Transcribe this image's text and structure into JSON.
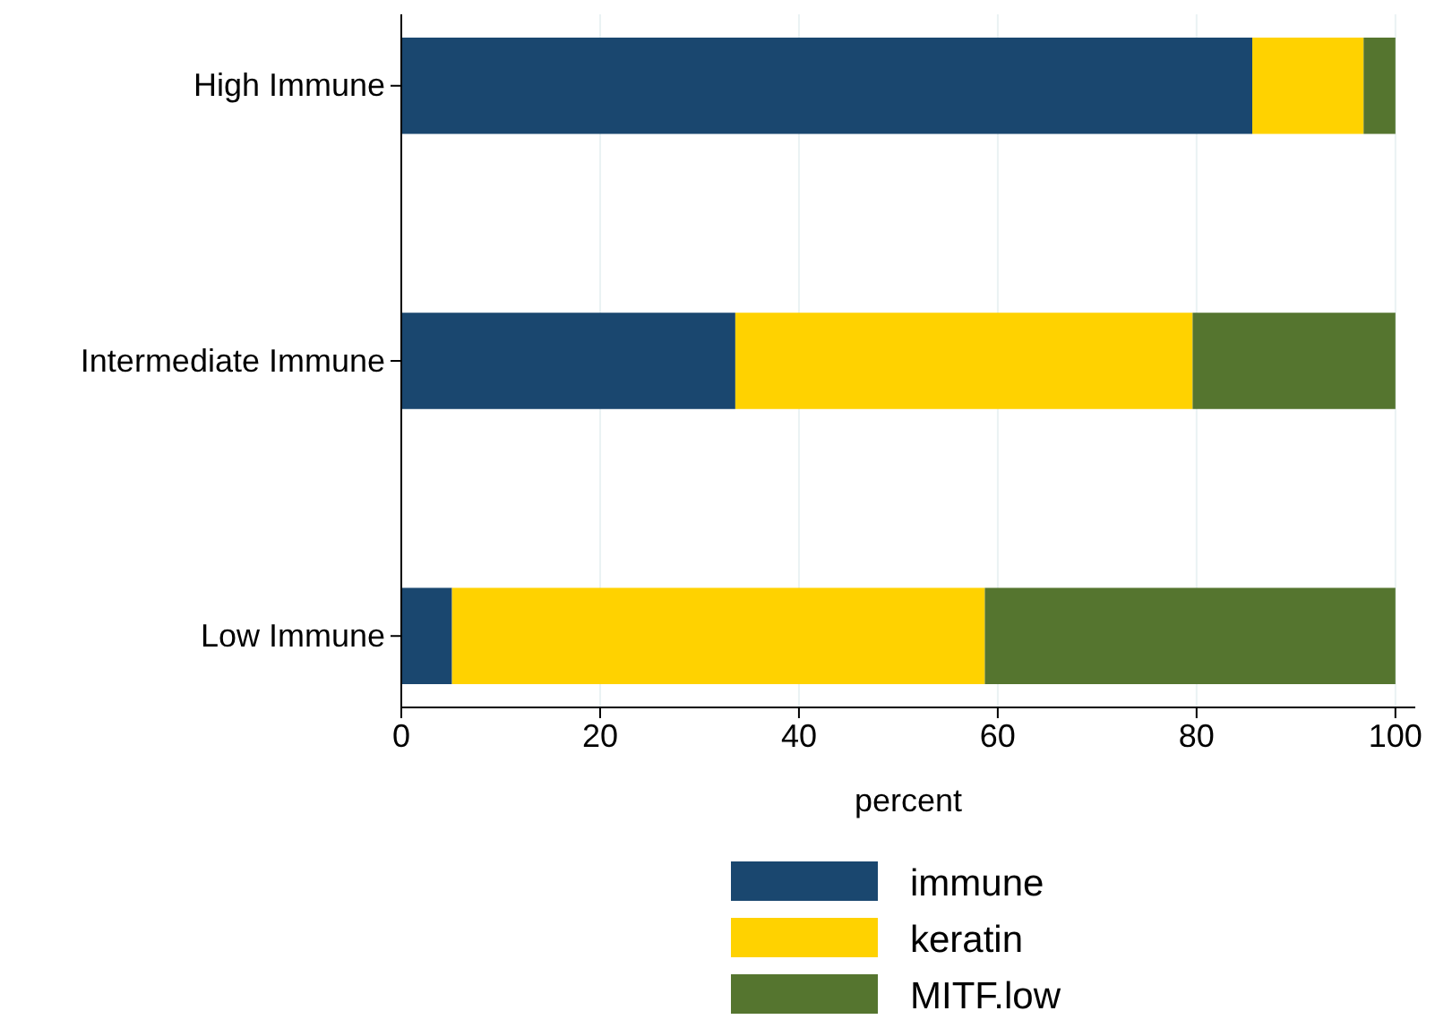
{
  "chart_data": {
    "type": "bar",
    "orientation": "horizontal",
    "stacked": true,
    "xlabel": "percent",
    "categories": [
      "High Immune",
      "Intermediate Immune",
      "Low Immune"
    ],
    "series": [
      {
        "name": "immune",
        "color": "#1a476f",
        "values": [
          85.6,
          33.6,
          5.1
        ]
      },
      {
        "name": "keratin",
        "color": "#ffd200",
        "values": [
          11.2,
          46.0,
          53.6
        ]
      },
      {
        "name": "MITF.low",
        "color": "#55752f",
        "values": [
          3.2,
          20.4,
          41.3
        ]
      }
    ],
    "xlim": [
      0,
      102
    ],
    "xticks": [
      0,
      20,
      40,
      60,
      80,
      100
    ],
    "grid": "x",
    "legend": "bottom"
  }
}
